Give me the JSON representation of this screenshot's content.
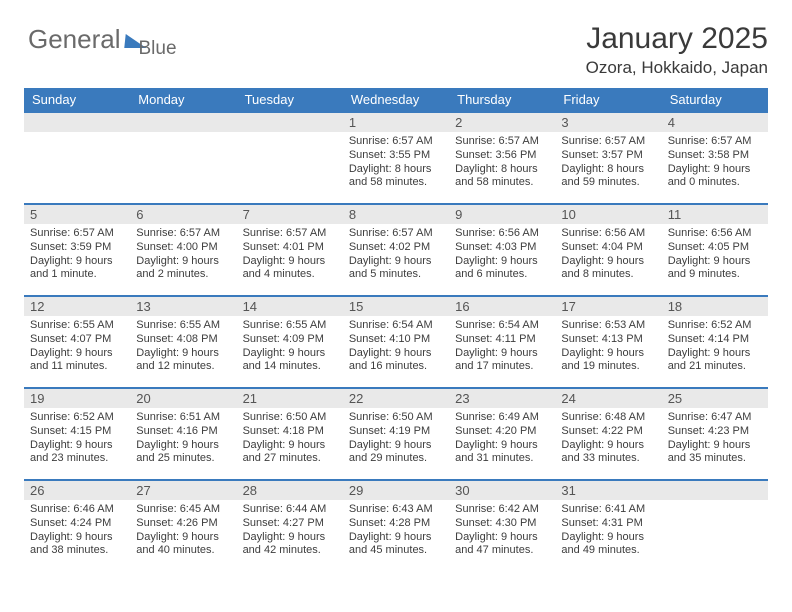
{
  "logo": {
    "word1": "General",
    "word2": "Blue"
  },
  "header": {
    "month_year": "January 2025",
    "location": "Ozora, Hokkaido, Japan"
  },
  "colors": {
    "header_bg": "#3a7abd",
    "header_text": "#ffffff",
    "daynum_bg": "#e9e9e9",
    "rule": "#3a7abd",
    "body_text": "#3d3d3d",
    "title_text": "#3a3a3a",
    "page_bg": "#ffffff"
  },
  "day_labels": [
    "Sunday",
    "Monday",
    "Tuesday",
    "Wednesday",
    "Thursday",
    "Friday",
    "Saturday"
  ],
  "weeks": [
    [
      null,
      null,
      null,
      {
        "n": "1",
        "sr": "Sunrise: 6:57 AM",
        "ss": "Sunset: 3:55 PM",
        "d1": "Daylight: 8 hours",
        "d2": "and 58 minutes."
      },
      {
        "n": "2",
        "sr": "Sunrise: 6:57 AM",
        "ss": "Sunset: 3:56 PM",
        "d1": "Daylight: 8 hours",
        "d2": "and 58 minutes."
      },
      {
        "n": "3",
        "sr": "Sunrise: 6:57 AM",
        "ss": "Sunset: 3:57 PM",
        "d1": "Daylight: 8 hours",
        "d2": "and 59 minutes."
      },
      {
        "n": "4",
        "sr": "Sunrise: 6:57 AM",
        "ss": "Sunset: 3:58 PM",
        "d1": "Daylight: 9 hours",
        "d2": "and 0 minutes."
      }
    ],
    [
      {
        "n": "5",
        "sr": "Sunrise: 6:57 AM",
        "ss": "Sunset: 3:59 PM",
        "d1": "Daylight: 9 hours",
        "d2": "and 1 minute."
      },
      {
        "n": "6",
        "sr": "Sunrise: 6:57 AM",
        "ss": "Sunset: 4:00 PM",
        "d1": "Daylight: 9 hours",
        "d2": "and 2 minutes."
      },
      {
        "n": "7",
        "sr": "Sunrise: 6:57 AM",
        "ss": "Sunset: 4:01 PM",
        "d1": "Daylight: 9 hours",
        "d2": "and 4 minutes."
      },
      {
        "n": "8",
        "sr": "Sunrise: 6:57 AM",
        "ss": "Sunset: 4:02 PM",
        "d1": "Daylight: 9 hours",
        "d2": "and 5 minutes."
      },
      {
        "n": "9",
        "sr": "Sunrise: 6:56 AM",
        "ss": "Sunset: 4:03 PM",
        "d1": "Daylight: 9 hours",
        "d2": "and 6 minutes."
      },
      {
        "n": "10",
        "sr": "Sunrise: 6:56 AM",
        "ss": "Sunset: 4:04 PM",
        "d1": "Daylight: 9 hours",
        "d2": "and 8 minutes."
      },
      {
        "n": "11",
        "sr": "Sunrise: 6:56 AM",
        "ss": "Sunset: 4:05 PM",
        "d1": "Daylight: 9 hours",
        "d2": "and 9 minutes."
      }
    ],
    [
      {
        "n": "12",
        "sr": "Sunrise: 6:55 AM",
        "ss": "Sunset: 4:07 PM",
        "d1": "Daylight: 9 hours",
        "d2": "and 11 minutes."
      },
      {
        "n": "13",
        "sr": "Sunrise: 6:55 AM",
        "ss": "Sunset: 4:08 PM",
        "d1": "Daylight: 9 hours",
        "d2": "and 12 minutes."
      },
      {
        "n": "14",
        "sr": "Sunrise: 6:55 AM",
        "ss": "Sunset: 4:09 PM",
        "d1": "Daylight: 9 hours",
        "d2": "and 14 minutes."
      },
      {
        "n": "15",
        "sr": "Sunrise: 6:54 AM",
        "ss": "Sunset: 4:10 PM",
        "d1": "Daylight: 9 hours",
        "d2": "and 16 minutes."
      },
      {
        "n": "16",
        "sr": "Sunrise: 6:54 AM",
        "ss": "Sunset: 4:11 PM",
        "d1": "Daylight: 9 hours",
        "d2": "and 17 minutes."
      },
      {
        "n": "17",
        "sr": "Sunrise: 6:53 AM",
        "ss": "Sunset: 4:13 PM",
        "d1": "Daylight: 9 hours",
        "d2": "and 19 minutes."
      },
      {
        "n": "18",
        "sr": "Sunrise: 6:52 AM",
        "ss": "Sunset: 4:14 PM",
        "d1": "Daylight: 9 hours",
        "d2": "and 21 minutes."
      }
    ],
    [
      {
        "n": "19",
        "sr": "Sunrise: 6:52 AM",
        "ss": "Sunset: 4:15 PM",
        "d1": "Daylight: 9 hours",
        "d2": "and 23 minutes."
      },
      {
        "n": "20",
        "sr": "Sunrise: 6:51 AM",
        "ss": "Sunset: 4:16 PM",
        "d1": "Daylight: 9 hours",
        "d2": "and 25 minutes."
      },
      {
        "n": "21",
        "sr": "Sunrise: 6:50 AM",
        "ss": "Sunset: 4:18 PM",
        "d1": "Daylight: 9 hours",
        "d2": "and 27 minutes."
      },
      {
        "n": "22",
        "sr": "Sunrise: 6:50 AM",
        "ss": "Sunset: 4:19 PM",
        "d1": "Daylight: 9 hours",
        "d2": "and 29 minutes."
      },
      {
        "n": "23",
        "sr": "Sunrise: 6:49 AM",
        "ss": "Sunset: 4:20 PM",
        "d1": "Daylight: 9 hours",
        "d2": "and 31 minutes."
      },
      {
        "n": "24",
        "sr": "Sunrise: 6:48 AM",
        "ss": "Sunset: 4:22 PM",
        "d1": "Daylight: 9 hours",
        "d2": "and 33 minutes."
      },
      {
        "n": "25",
        "sr": "Sunrise: 6:47 AM",
        "ss": "Sunset: 4:23 PM",
        "d1": "Daylight: 9 hours",
        "d2": "and 35 minutes."
      }
    ],
    [
      {
        "n": "26",
        "sr": "Sunrise: 6:46 AM",
        "ss": "Sunset: 4:24 PM",
        "d1": "Daylight: 9 hours",
        "d2": "and 38 minutes."
      },
      {
        "n": "27",
        "sr": "Sunrise: 6:45 AM",
        "ss": "Sunset: 4:26 PM",
        "d1": "Daylight: 9 hours",
        "d2": "and 40 minutes."
      },
      {
        "n": "28",
        "sr": "Sunrise: 6:44 AM",
        "ss": "Sunset: 4:27 PM",
        "d1": "Daylight: 9 hours",
        "d2": "and 42 minutes."
      },
      {
        "n": "29",
        "sr": "Sunrise: 6:43 AM",
        "ss": "Sunset: 4:28 PM",
        "d1": "Daylight: 9 hours",
        "d2": "and 45 minutes."
      },
      {
        "n": "30",
        "sr": "Sunrise: 6:42 AM",
        "ss": "Sunset: 4:30 PM",
        "d1": "Daylight: 9 hours",
        "d2": "and 47 minutes."
      },
      {
        "n": "31",
        "sr": "Sunrise: 6:41 AM",
        "ss": "Sunset: 4:31 PM",
        "d1": "Daylight: 9 hours",
        "d2": "and 49 minutes."
      },
      null
    ]
  ]
}
